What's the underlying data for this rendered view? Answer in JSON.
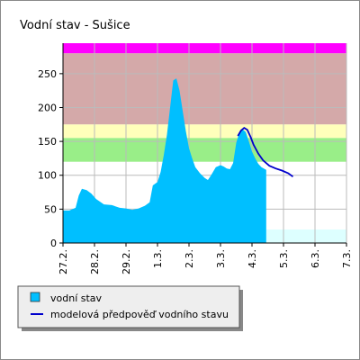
{
  "chart_data": {
    "type": "area",
    "title": "Vodní stav - Sušice",
    "xlabel": "",
    "ylabel": "",
    "categories": [
      "27.2.",
      "28.2.",
      "29.2.",
      "1.3.",
      "2.3.",
      "3.3.",
      "4.3.",
      "5.3.",
      "6.3.",
      "7.3."
    ],
    "x_range": [
      0,
      9
    ],
    "ylim": [
      0,
      295
    ],
    "y_ticks": [
      0,
      50,
      100,
      150,
      200,
      250
    ],
    "grid": true,
    "legend_position": "bottom-left",
    "bands": [
      {
        "from": 280,
        "to": 295,
        "color": "#ff00ff"
      },
      {
        "from": 175,
        "to": 280,
        "color": "#d4a9a9"
      },
      {
        "from": 155,
        "to": 175,
        "color": "#ffffbb"
      },
      {
        "from": 120,
        "to": 155,
        "color": "#99ee88"
      },
      {
        "from": 0,
        "to": 20,
        "color": "#ddffff",
        "x_from": 6.45,
        "x_to": 9
      }
    ],
    "series": [
      {
        "name": "vodní stav",
        "kind": "area",
        "color": "#00bfff",
        "points": [
          [
            0.0,
            48
          ],
          [
            0.2,
            48
          ],
          [
            0.4,
            52
          ],
          [
            0.5,
            70
          ],
          [
            0.6,
            80
          ],
          [
            0.75,
            78
          ],
          [
            0.9,
            73
          ],
          [
            1.05,
            65
          ],
          [
            1.3,
            57
          ],
          [
            1.55,
            56
          ],
          [
            1.8,
            52
          ],
          [
            2.0,
            51
          ],
          [
            2.2,
            49
          ],
          [
            2.4,
            51
          ],
          [
            2.6,
            55
          ],
          [
            2.75,
            60
          ],
          [
            2.85,
            85
          ],
          [
            3.0,
            90
          ],
          [
            3.1,
            105
          ],
          [
            3.2,
            130
          ],
          [
            3.3,
            160
          ],
          [
            3.4,
            200
          ],
          [
            3.5,
            240
          ],
          [
            3.6,
            243
          ],
          [
            3.7,
            225
          ],
          [
            3.8,
            195
          ],
          [
            3.9,
            165
          ],
          [
            4.0,
            140
          ],
          [
            4.1,
            125
          ],
          [
            4.2,
            112
          ],
          [
            4.35,
            103
          ],
          [
            4.5,
            96
          ],
          [
            4.6,
            93
          ],
          [
            4.7,
            100
          ],
          [
            4.85,
            112
          ],
          [
            5.0,
            115
          ],
          [
            5.1,
            113
          ],
          [
            5.2,
            110
          ],
          [
            5.3,
            109
          ],
          [
            5.4,
            118
          ],
          [
            5.5,
            148
          ],
          [
            5.6,
            163
          ],
          [
            5.7,
            168
          ],
          [
            5.8,
            164
          ],
          [
            5.9,
            150
          ],
          [
            6.0,
            135
          ],
          [
            6.1,
            125
          ],
          [
            6.2,
            117
          ],
          [
            6.3,
            112
          ],
          [
            6.45,
            108
          ]
        ]
      },
      {
        "name": "modelová předpověď vodního stavu",
        "kind": "line",
        "color": "#0000cc",
        "points": [
          [
            5.55,
            158
          ],
          [
            5.65,
            166
          ],
          [
            5.75,
            170
          ],
          [
            5.85,
            167
          ],
          [
            5.95,
            157
          ],
          [
            6.05,
            145
          ],
          [
            6.2,
            132
          ],
          [
            6.35,
            122
          ],
          [
            6.55,
            114
          ],
          [
            6.75,
            110
          ],
          [
            6.95,
            107
          ],
          [
            7.15,
            103
          ],
          [
            7.3,
            98
          ]
        ]
      }
    ]
  }
}
